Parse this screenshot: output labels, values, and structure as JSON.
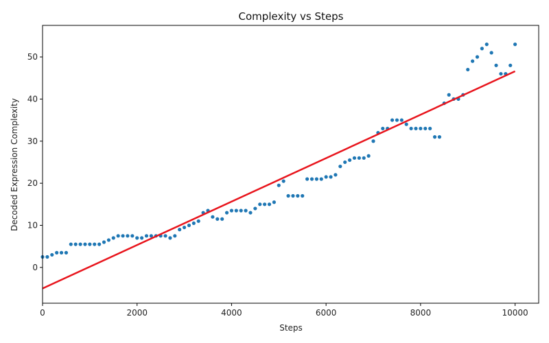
{
  "chart_data": {
    "type": "scatter",
    "title": "Complexity vs Steps",
    "xlabel": "Steps",
    "ylabel": "Decoded Expression Complexity",
    "xlim": [
      0,
      10500
    ],
    "ylim": [
      -8.5,
      57.5
    ],
    "xticks": [
      0,
      2000,
      4000,
      6000,
      8000,
      10000
    ],
    "yticks": [
      0,
      10,
      20,
      30,
      40,
      50
    ],
    "grid": false,
    "legend": "none",
    "point_color": "#1f77b4",
    "fit_color": "#e8141c",
    "series": [
      {
        "kind": "points",
        "x": [
          0,
          100,
          200,
          300,
          400,
          500,
          600,
          700,
          800,
          900,
          1000,
          1100,
          1200,
          1300,
          1400,
          1500,
          1600,
          1700,
          1800,
          1900,
          2000,
          2100,
          2200,
          2300,
          2400,
          2500,
          2600,
          2700,
          2800,
          2900,
          3000,
          3100,
          3200,
          3300,
          3400,
          3500,
          3600,
          3700,
          3800,
          3900,
          4000,
          4100,
          4200,
          4300,
          4400,
          4500,
          4600,
          4700,
          4800,
          4900,
          5000,
          5100,
          5200,
          5300,
          5400,
          5500,
          5600,
          5700,
          5800,
          5900,
          6000,
          6100,
          6200,
          6300,
          6400,
          6500,
          6600,
          6700,
          6800,
          6900,
          7000,
          7100,
          7200,
          7300,
          7400,
          7500,
          7600,
          7700,
          7800,
          7900,
          8000,
          8100,
          8200,
          8300,
          8400,
          8500,
          8600,
          8700,
          8800,
          8900,
          9000,
          9100,
          9200,
          9300,
          9400,
          9500,
          9600,
          9700,
          9800,
          9900,
          10000
        ],
        "y": [
          2.5,
          2.5,
          3,
          3.5,
          3.5,
          3.5,
          5.5,
          5.5,
          5.5,
          5.5,
          5.5,
          5.5,
          5.5,
          6,
          6.5,
          7,
          7.5,
          7.5,
          7.5,
          7.5,
          7,
          7,
          7.5,
          7.5,
          7.5,
          7.5,
          7.5,
          7,
          7.5,
          9,
          9.5,
          10,
          10.5,
          11,
          13,
          13.5,
          12,
          11.5,
          11.5,
          13,
          13.5,
          13.5,
          13.5,
          13.5,
          13,
          14,
          15,
          15,
          15,
          15.5,
          19.5,
          20.5,
          17,
          17,
          17,
          17,
          21,
          21,
          21,
          21,
          21.5,
          21.5,
          22,
          24,
          25,
          25.5,
          26,
          26,
          26,
          26.5,
          30,
          32,
          33,
          33,
          35,
          35,
          35,
          34,
          33,
          33,
          33,
          33,
          33,
          31,
          31,
          39,
          41,
          40,
          40,
          41,
          47,
          49,
          50,
          52,
          53,
          51,
          48,
          46,
          46,
          48,
          53
        ]
      },
      {
        "kind": "fit",
        "x": [
          0,
          10000
        ],
        "y": [
          -5,
          46.6
        ]
      }
    ]
  }
}
